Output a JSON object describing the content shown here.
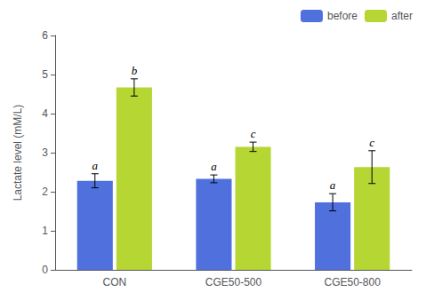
{
  "chart_data": {
    "type": "bar",
    "categories": [
      "CON",
      "CGE50-500",
      "CGE50-800"
    ],
    "series": [
      {
        "name": "before",
        "values": [
          2.28,
          2.33,
          1.73
        ],
        "errors": [
          0.18,
          0.1,
          0.22
        ],
        "annotations": [
          "a",
          "a",
          "a"
        ]
      },
      {
        "name": "after",
        "values": [
          4.67,
          3.15,
          2.63
        ],
        "errors": [
          0.22,
          0.12,
          0.42
        ],
        "annotations": [
          "b",
          "c",
          "c"
        ]
      }
    ],
    "ylabel": "Lactate level (mM/L)",
    "ylim": [
      0,
      6
    ],
    "yticks": [
      0,
      1,
      2,
      3,
      4,
      5,
      6
    ],
    "grid": false,
    "legend": "upper right"
  }
}
